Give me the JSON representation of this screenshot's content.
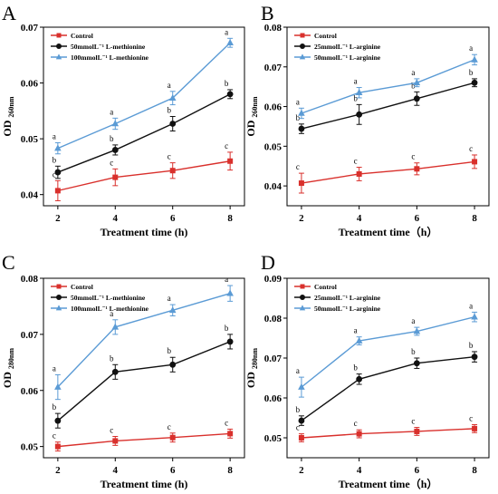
{
  "colors": {
    "control": "#d9302c",
    "low": "#111111",
    "high": "#5b9bd5"
  },
  "chart_data": [
    {
      "type": "line",
      "panel": "A",
      "xlabel": "Treatment time (h)",
      "ylabel": "OD",
      "ylabel_sub": "260nm",
      "ylim": [
        0.038,
        0.07
      ],
      "yticks": [
        "0.04",
        "0.05",
        "0.06",
        "0.07"
      ],
      "ytick_values": [
        0.04,
        0.05,
        0.06,
        0.07
      ],
      "x": [
        2,
        4,
        6,
        8
      ],
      "xticks": [
        "2",
        "4",
        "6",
        "8"
      ],
      "legend_position": "top-left",
      "series": [
        {
          "name": "Control",
          "color_key": "control",
          "marker": "square",
          "values": [
            0.0407,
            0.0431,
            0.0443,
            0.046
          ],
          "errors": [
            0.0018,
            0.0015,
            0.0014,
            0.0016
          ],
          "labels": [
            "c",
            "c",
            "c",
            "c"
          ]
        },
        {
          "name": "50mmolL⁻¹ L-methionine",
          "color_key": "low",
          "marker": "circle",
          "values": [
            0.044,
            0.048,
            0.0527,
            0.058
          ],
          "errors": [
            0.0011,
            0.0009,
            0.0013,
            0.0008
          ],
          "labels": [
            "b",
            "b",
            "b",
            "b"
          ]
        },
        {
          "name": "100mmolL⁻¹ L-methionine",
          "color_key": "high",
          "marker": "triangle",
          "values": [
            0.0483,
            0.0527,
            0.0573,
            0.0672
          ],
          "errors": [
            0.001,
            0.001,
            0.0012,
            0.0008
          ],
          "labels": [
            "a",
            "a",
            "a",
            "a"
          ]
        }
      ]
    },
    {
      "type": "line",
      "panel": "B",
      "xlabel": "Treatment time（h）",
      "ylabel": "OD",
      "ylabel_sub": "260nm",
      "ylim": [
        0.035,
        0.08
      ],
      "yticks": [
        "0.04",
        "0.05",
        "0.06",
        "0.07",
        "0.08"
      ],
      "ytick_values": [
        0.04,
        0.05,
        0.06,
        0.07,
        0.08
      ],
      "x": [
        2,
        4,
        6,
        8
      ],
      "xticks": [
        "2",
        "4",
        "6",
        "8"
      ],
      "legend_position": "top-left",
      "series": [
        {
          "name": "Control",
          "color_key": "control",
          "marker": "square",
          "values": [
            0.0407,
            0.043,
            0.0443,
            0.0461
          ],
          "errors": [
            0.0025,
            0.0017,
            0.0015,
            0.0017
          ],
          "labels": [
            "c",
            "c",
            "c",
            "c"
          ]
        },
        {
          "name": "25mmolL⁻¹ L-arginine",
          "color_key": "low",
          "marker": "circle",
          "values": [
            0.0544,
            0.058,
            0.062,
            0.066
          ],
          "errors": [
            0.0012,
            0.0025,
            0.0017,
            0.001
          ],
          "labels": [
            "b",
            "b",
            "b",
            "b"
          ]
        },
        {
          "name": "50mmolL⁻¹ L-arginine",
          "color_key": "high",
          "marker": "triangle",
          "values": [
            0.0583,
            0.0635,
            0.066,
            0.0718
          ],
          "errors": [
            0.0013,
            0.0013,
            0.001,
            0.0013
          ],
          "labels": [
            "a",
            "a",
            "a",
            "a"
          ]
        }
      ]
    },
    {
      "type": "line",
      "panel": "C",
      "xlabel": "Treatment time (h)",
      "ylabel": "OD",
      "ylabel_sub": "280nm",
      "ylim": [
        0.048,
        0.08
      ],
      "yticks": [
        "0.05",
        "0.06",
        "0.07",
        "0.08"
      ],
      "ytick_values": [
        0.05,
        0.06,
        0.07,
        0.08
      ],
      "x": [
        2,
        4,
        6,
        8
      ],
      "xticks": [
        "2",
        "4",
        "6",
        "8"
      ],
      "legend_position": "top-left",
      "series": [
        {
          "name": "Control",
          "color_key": "control",
          "marker": "square",
          "values": [
            0.05,
            0.051,
            0.0516,
            0.0523
          ],
          "errors": [
            0.0008,
            0.0008,
            0.0008,
            0.0008
          ],
          "labels": [
            "c",
            "c",
            "c",
            "c"
          ]
        },
        {
          "name": "50mmolL⁻¹ L-methionine",
          "color_key": "low",
          "marker": "circle",
          "values": [
            0.0546,
            0.0633,
            0.0646,
            0.0687
          ],
          "errors": [
            0.0013,
            0.0013,
            0.0013,
            0.0013
          ],
          "labels": [
            "b",
            "b",
            "b",
            "b"
          ]
        },
        {
          "name": "100mmolL⁻¹ L-methionine",
          "color_key": "high",
          "marker": "triangle",
          "values": [
            0.0606,
            0.0713,
            0.0743,
            0.0773
          ],
          "errors": [
            0.0022,
            0.0013,
            0.001,
            0.0014
          ],
          "labels": [
            "a",
            "a",
            "a",
            "a"
          ]
        }
      ]
    },
    {
      "type": "line",
      "panel": "D",
      "xlabel": "Treatment time（h）",
      "ylabel": "OD",
      "ylabel_sub": "280nm",
      "ylim": [
        0.045,
        0.09
      ],
      "yticks": [
        "0.05",
        "0.06",
        "0.07",
        "0.08",
        "0.09"
      ],
      "ytick_values": [
        0.05,
        0.06,
        0.07,
        0.08,
        0.09
      ],
      "x": [
        2,
        4,
        6,
        8
      ],
      "xticks": [
        "2",
        "4",
        "6",
        "8"
      ],
      "legend_position": "top-left",
      "series": [
        {
          "name": "Control",
          "color_key": "control",
          "marker": "square",
          "values": [
            0.05,
            0.051,
            0.0516,
            0.0523
          ],
          "errors": [
            0.001,
            0.001,
            0.001,
            0.001
          ],
          "labels": [
            "c",
            "c",
            "c",
            "c"
          ]
        },
        {
          "name": "25mmolL⁻¹ L-arginine",
          "color_key": "low",
          "marker": "circle",
          "values": [
            0.0543,
            0.0647,
            0.0687,
            0.0703
          ],
          "errors": [
            0.0012,
            0.0013,
            0.0013,
            0.0013
          ],
          "labels": [
            "b",
            "b",
            "b",
            "b"
          ]
        },
        {
          "name": "50mmolL⁻¹ L-arginine",
          "color_key": "high",
          "marker": "triangle",
          "values": [
            0.0627,
            0.0743,
            0.0767,
            0.0803
          ],
          "errors": [
            0.0025,
            0.001,
            0.001,
            0.0012
          ],
          "labels": [
            "a",
            "a",
            "a",
            "a"
          ]
        }
      ]
    }
  ]
}
